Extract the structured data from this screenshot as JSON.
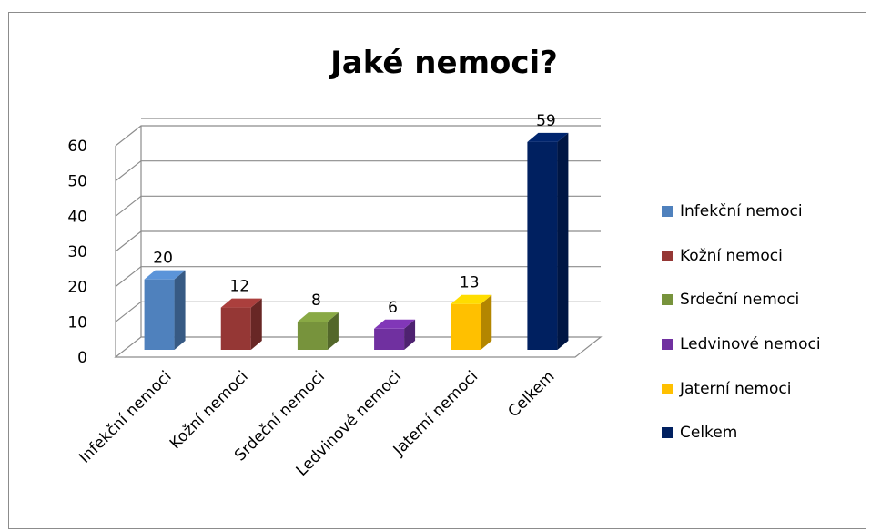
{
  "chart_data": {
    "type": "bar",
    "title": "Jaké nemoci?",
    "categories": [
      "Infekční nemoci",
      "Kožní nemoci",
      "Srdeční nemoci",
      "Ledvinové nemoci",
      "Jaterní nemoci",
      "Celkem"
    ],
    "values": [
      20,
      12,
      8,
      6,
      13,
      59
    ],
    "colors": [
      "#4f81bd",
      "#953735",
      "#77933c",
      "#7030a0",
      "#ffc000",
      "#002060"
    ],
    "ylim": [
      0,
      60
    ],
    "yticks": [
      "0",
      "10",
      "20",
      "30",
      "40",
      "50",
      "60"
    ],
    "legend_position": "right",
    "grid": true,
    "data_labels": true,
    "style": "3d-column"
  }
}
